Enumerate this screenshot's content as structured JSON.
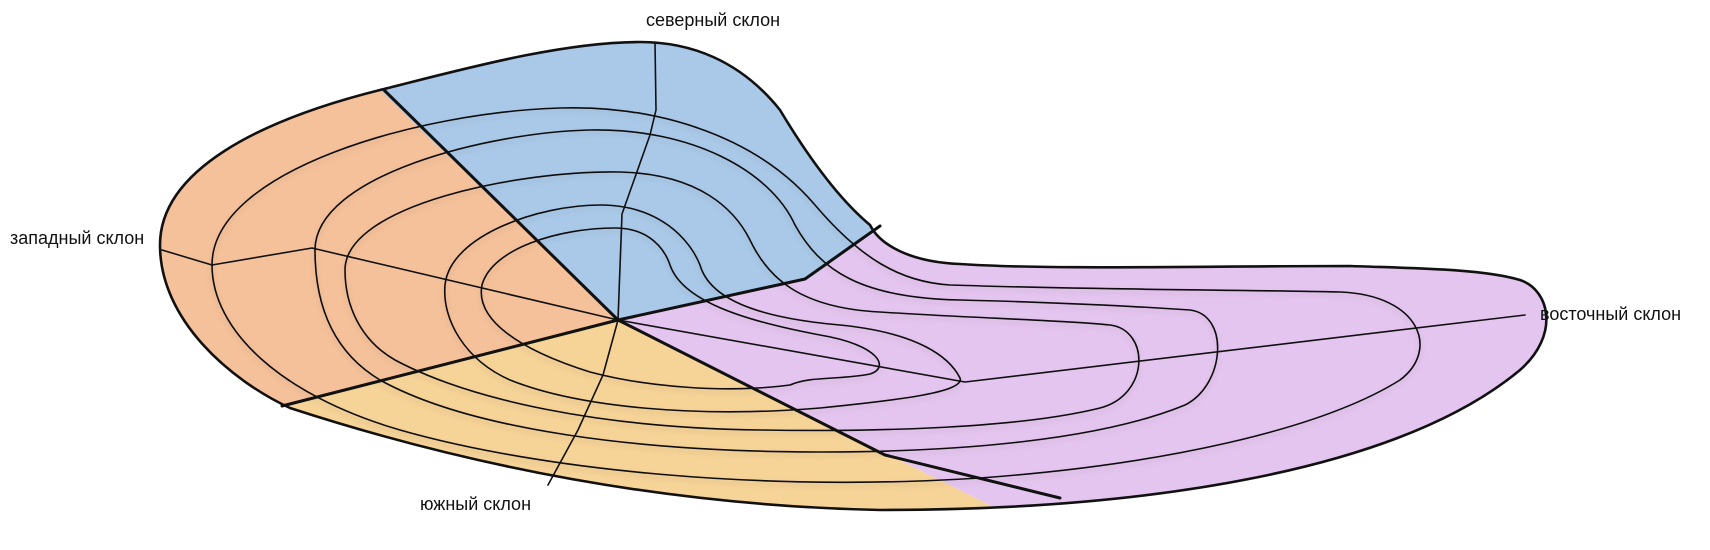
{
  "labels": {
    "north": "северный склон",
    "west": "западный склон",
    "east": "восточный склон",
    "south": "южный склон"
  },
  "colors": {
    "north": "#aac9e8",
    "west": "#f5c19a",
    "east": "#e4c5ef",
    "south": "#f6d397",
    "line": "#111111"
  }
}
